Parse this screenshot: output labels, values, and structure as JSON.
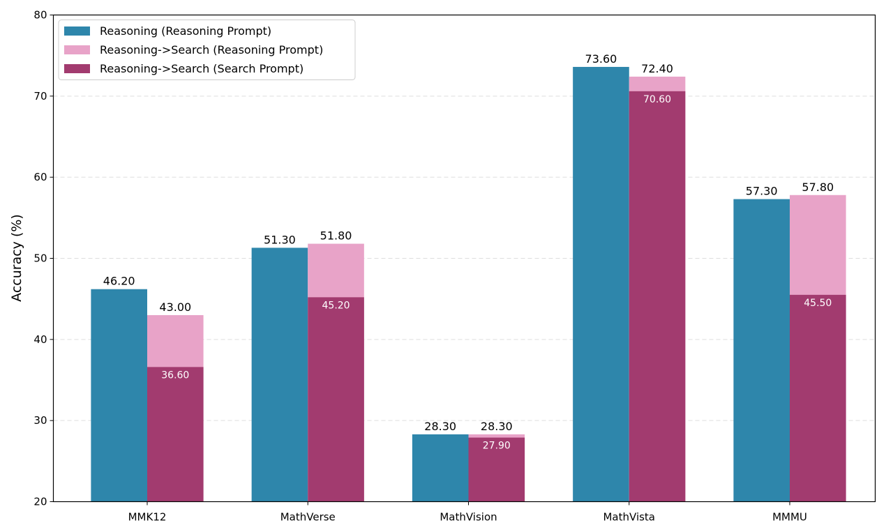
{
  "chart_data": {
    "type": "bar",
    "title": "",
    "xlabel": "",
    "ylabel": "Accuracy (%)",
    "ylim": [
      20,
      80
    ],
    "yticks": [
      20,
      30,
      40,
      50,
      60,
      70,
      80
    ],
    "grid": "horizontal dashed",
    "legend_placement": "top-left",
    "categories": [
      "MMK12",
      "MathVerse",
      "MathVision",
      "MathVista",
      "MMMU"
    ],
    "series": [
      {
        "name": "Reasoning (Reasoning Prompt)",
        "color": "#2E86AB",
        "values": [
          46.2,
          51.3,
          28.3,
          73.6,
          57.3
        ]
      },
      {
        "name": "Reasoning->Search (Reasoning Prompt)",
        "color": "#E8A3C8",
        "values": [
          43.0,
          51.8,
          28.3,
          72.4,
          57.8
        ]
      },
      {
        "name": "Reasoning->Search (Search Prompt)",
        "color": "#A23B6F",
        "values": [
          36.6,
          45.2,
          27.9,
          70.6,
          45.5
        ]
      }
    ],
    "value_label_format": "2 decimals"
  }
}
